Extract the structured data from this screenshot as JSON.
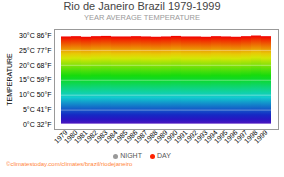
{
  "chart_data": {
    "type": "range_bar",
    "title": "Rio de Janeiro Brazil 1979-1999",
    "subtitle": "YEAR AVERAGE TEMPERATURE",
    "ylabel": "TEMPERATURE",
    "categories": [
      "1979",
      "1980",
      "1981",
      "1982",
      "1983",
      "1984",
      "1985",
      "1986",
      "1987",
      "1988",
      "1989",
      "1990",
      "1991",
      "1992",
      "1993",
      "1994",
      "1995",
      "1996",
      "1997",
      "1998",
      "1999"
    ],
    "series": [
      {
        "name": "NIGHT",
        "color": "#999999",
        "values": [
          0.3,
          0.3,
          0.3,
          0.3,
          0.3,
          0.3,
          0.3,
          0.3,
          0.3,
          0.3,
          0.3,
          0.3,
          0.3,
          0.3,
          0.3,
          0.3,
          0.3,
          0.3,
          0.3,
          0.3,
          0.3
        ]
      },
      {
        "name": "DAY",
        "color": "#ff2200",
        "values": [
          29.5,
          29.6,
          29.4,
          29.6,
          29.7,
          29.5,
          29.5,
          29.6,
          29.5,
          29.4,
          29.5,
          29.7,
          29.5,
          29.5,
          29.4,
          29.6,
          29.5,
          29.4,
          29.6,
          29.9,
          29.6
        ]
      }
    ],
    "ylim": [
      -1.5,
      32
    ],
    "yticks": [
      {
        "value": 0,
        "label": "0°C 32°F"
      },
      {
        "value": 5,
        "label": "5°C 41°F"
      },
      {
        "value": 10,
        "label": "10°C 50°F"
      },
      {
        "value": 15,
        "label": "15°C 59°F"
      },
      {
        "value": 20,
        "label": "20°C 68°F"
      },
      {
        "value": 25,
        "label": "25°C 77°F"
      },
      {
        "value": 30,
        "label": "30°C 86°F"
      }
    ],
    "grid": true,
    "legend": "bottom",
    "annotations": [
      "©climatestoday.com/climates/brazil/riodejaneiro"
    ]
  }
}
